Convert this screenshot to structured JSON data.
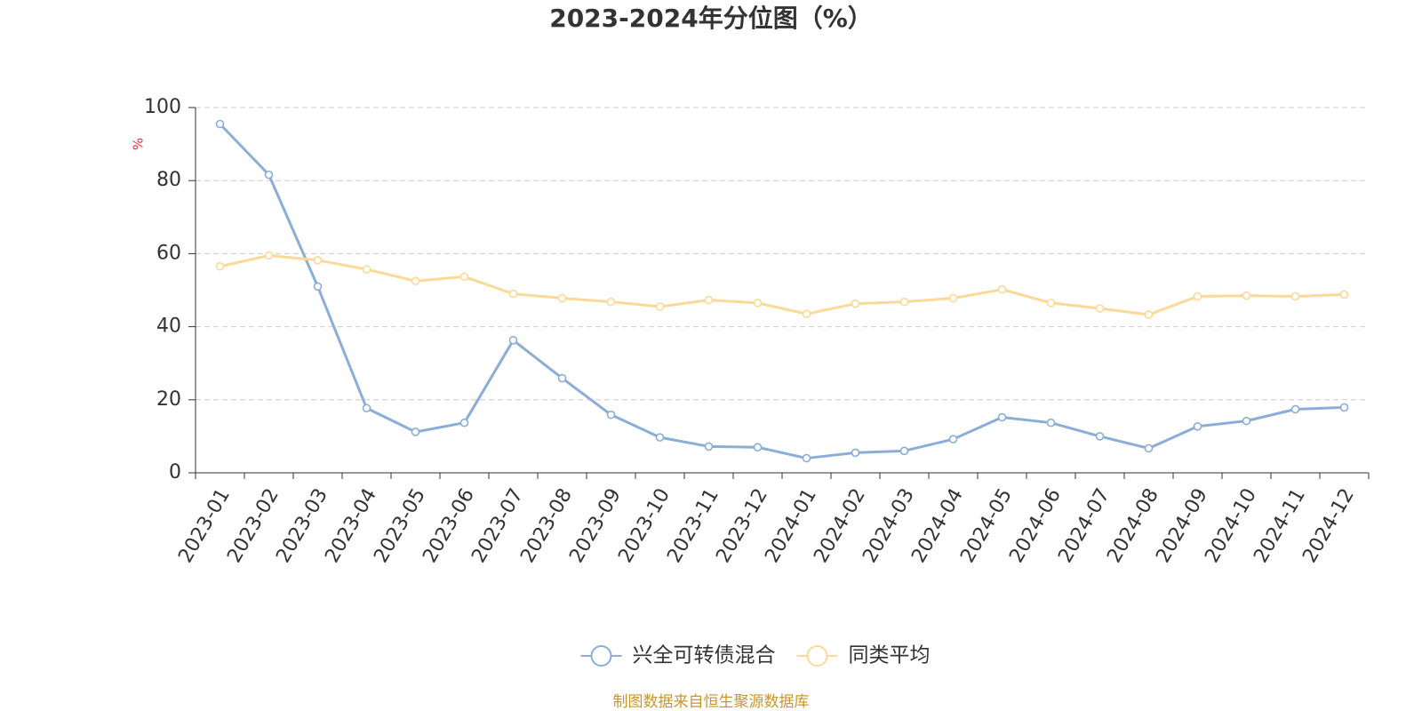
{
  "chart_data": {
    "type": "line",
    "title": "2023-2024年分位图（%）",
    "y_label": "%",
    "categories": [
      "2023-01",
      "2023-02",
      "2023-03",
      "2023-04",
      "2023-05",
      "2023-06",
      "2023-07",
      "2023-08",
      "2023-09",
      "2023-10",
      "2023-11",
      "2023-12",
      "2024-01",
      "2024-02",
      "2024-03",
      "2024-04",
      "2024-05",
      "2024-06",
      "2024-07",
      "2024-08",
      "2024-09",
      "2024-10",
      "2024-11",
      "2024-12"
    ],
    "series": [
      {
        "name": "兴全可转债混合",
        "color": "#8aaed8",
        "values": [
          95.5,
          81.6,
          51.0,
          17.7,
          11.2,
          13.7,
          36.3,
          25.9,
          15.9,
          9.7,
          7.2,
          7.0,
          4.0,
          5.5,
          6.0,
          9.2,
          15.2,
          13.7,
          10.0,
          6.7,
          12.7,
          14.2,
          17.4,
          17.9
        ]
      },
      {
        "name": "同类平均",
        "color": "#fcd996",
        "values": [
          56.5,
          59.5,
          58.2,
          55.7,
          52.5,
          53.7,
          49.0,
          47.8,
          46.8,
          45.5,
          47.3,
          46.5,
          43.5,
          46.3,
          46.8,
          47.8,
          50.2,
          46.5,
          45.0,
          43.3,
          48.3,
          48.5,
          48.3,
          48.8
        ]
      }
    ],
    "ylim": [
      0,
      100
    ],
    "yticks": [
      0,
      20,
      40,
      60,
      80,
      100
    ],
    "grid": true,
    "legend": "bottom",
    "source": "制图数据来自恒生聚源数据库"
  }
}
